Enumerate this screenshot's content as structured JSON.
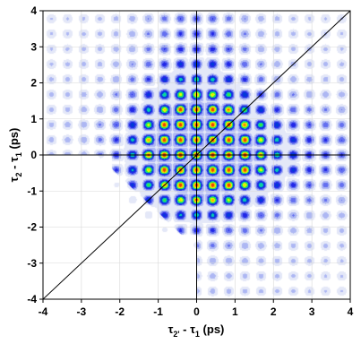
{
  "chart_data": {
    "type": "heatmap",
    "xlim": [
      -4,
      4
    ],
    "ylim": [
      -4,
      4
    ],
    "x_ticks": [
      "-4",
      "-3",
      "-2",
      "-1",
      "0",
      "1",
      "2",
      "3",
      "4"
    ],
    "y_ticks": [
      "-4",
      "-3",
      "-2",
      "-1",
      "0",
      "1",
      "2",
      "3",
      "4"
    ],
    "x_tick_values": [
      -4,
      -3,
      -2,
      -1,
      0,
      1,
      2,
      3,
      4
    ],
    "y_tick_values": [
      -4,
      -3,
      -2,
      -1,
      0,
      1,
      2,
      3,
      4
    ],
    "xlabel": {
      "tau": "τ",
      "sub1": "2'",
      "mid": " - τ",
      "sub2": "1",
      "unit": " (ps)"
    },
    "ylabel": {
      "tau": "τ",
      "sub1": "2",
      "mid": " - τ",
      "sub2": "1",
      "unit": " (ps)"
    },
    "grid": true,
    "grid_color": "#d8d8d8",
    "colormap": [
      "#ffffff",
      "#dfe4f7",
      "#9aa6f2",
      "#3a46ee",
      "#0000dd",
      "#00c8c8",
      "#33ee33",
      "#ffff00",
      "#ff9900",
      "#dd0000"
    ],
    "peak": {
      "x": 0,
      "y": 0
    },
    "lattice_period": {
      "x": 0.42,
      "y": 0.42
    },
    "overlay_lines": [
      {
        "name": "diagonal",
        "points": [
          [
            -4,
            -4
          ],
          [
            4,
            4
          ]
        ]
      },
      {
        "name": "horizontal-zero",
        "points": [
          [
            -4,
            0
          ],
          [
            4,
            0
          ]
        ]
      },
      {
        "name": "vertical-zero",
        "points": [
          [
            0,
            -4
          ],
          [
            0,
            4
          ]
        ]
      }
    ]
  }
}
